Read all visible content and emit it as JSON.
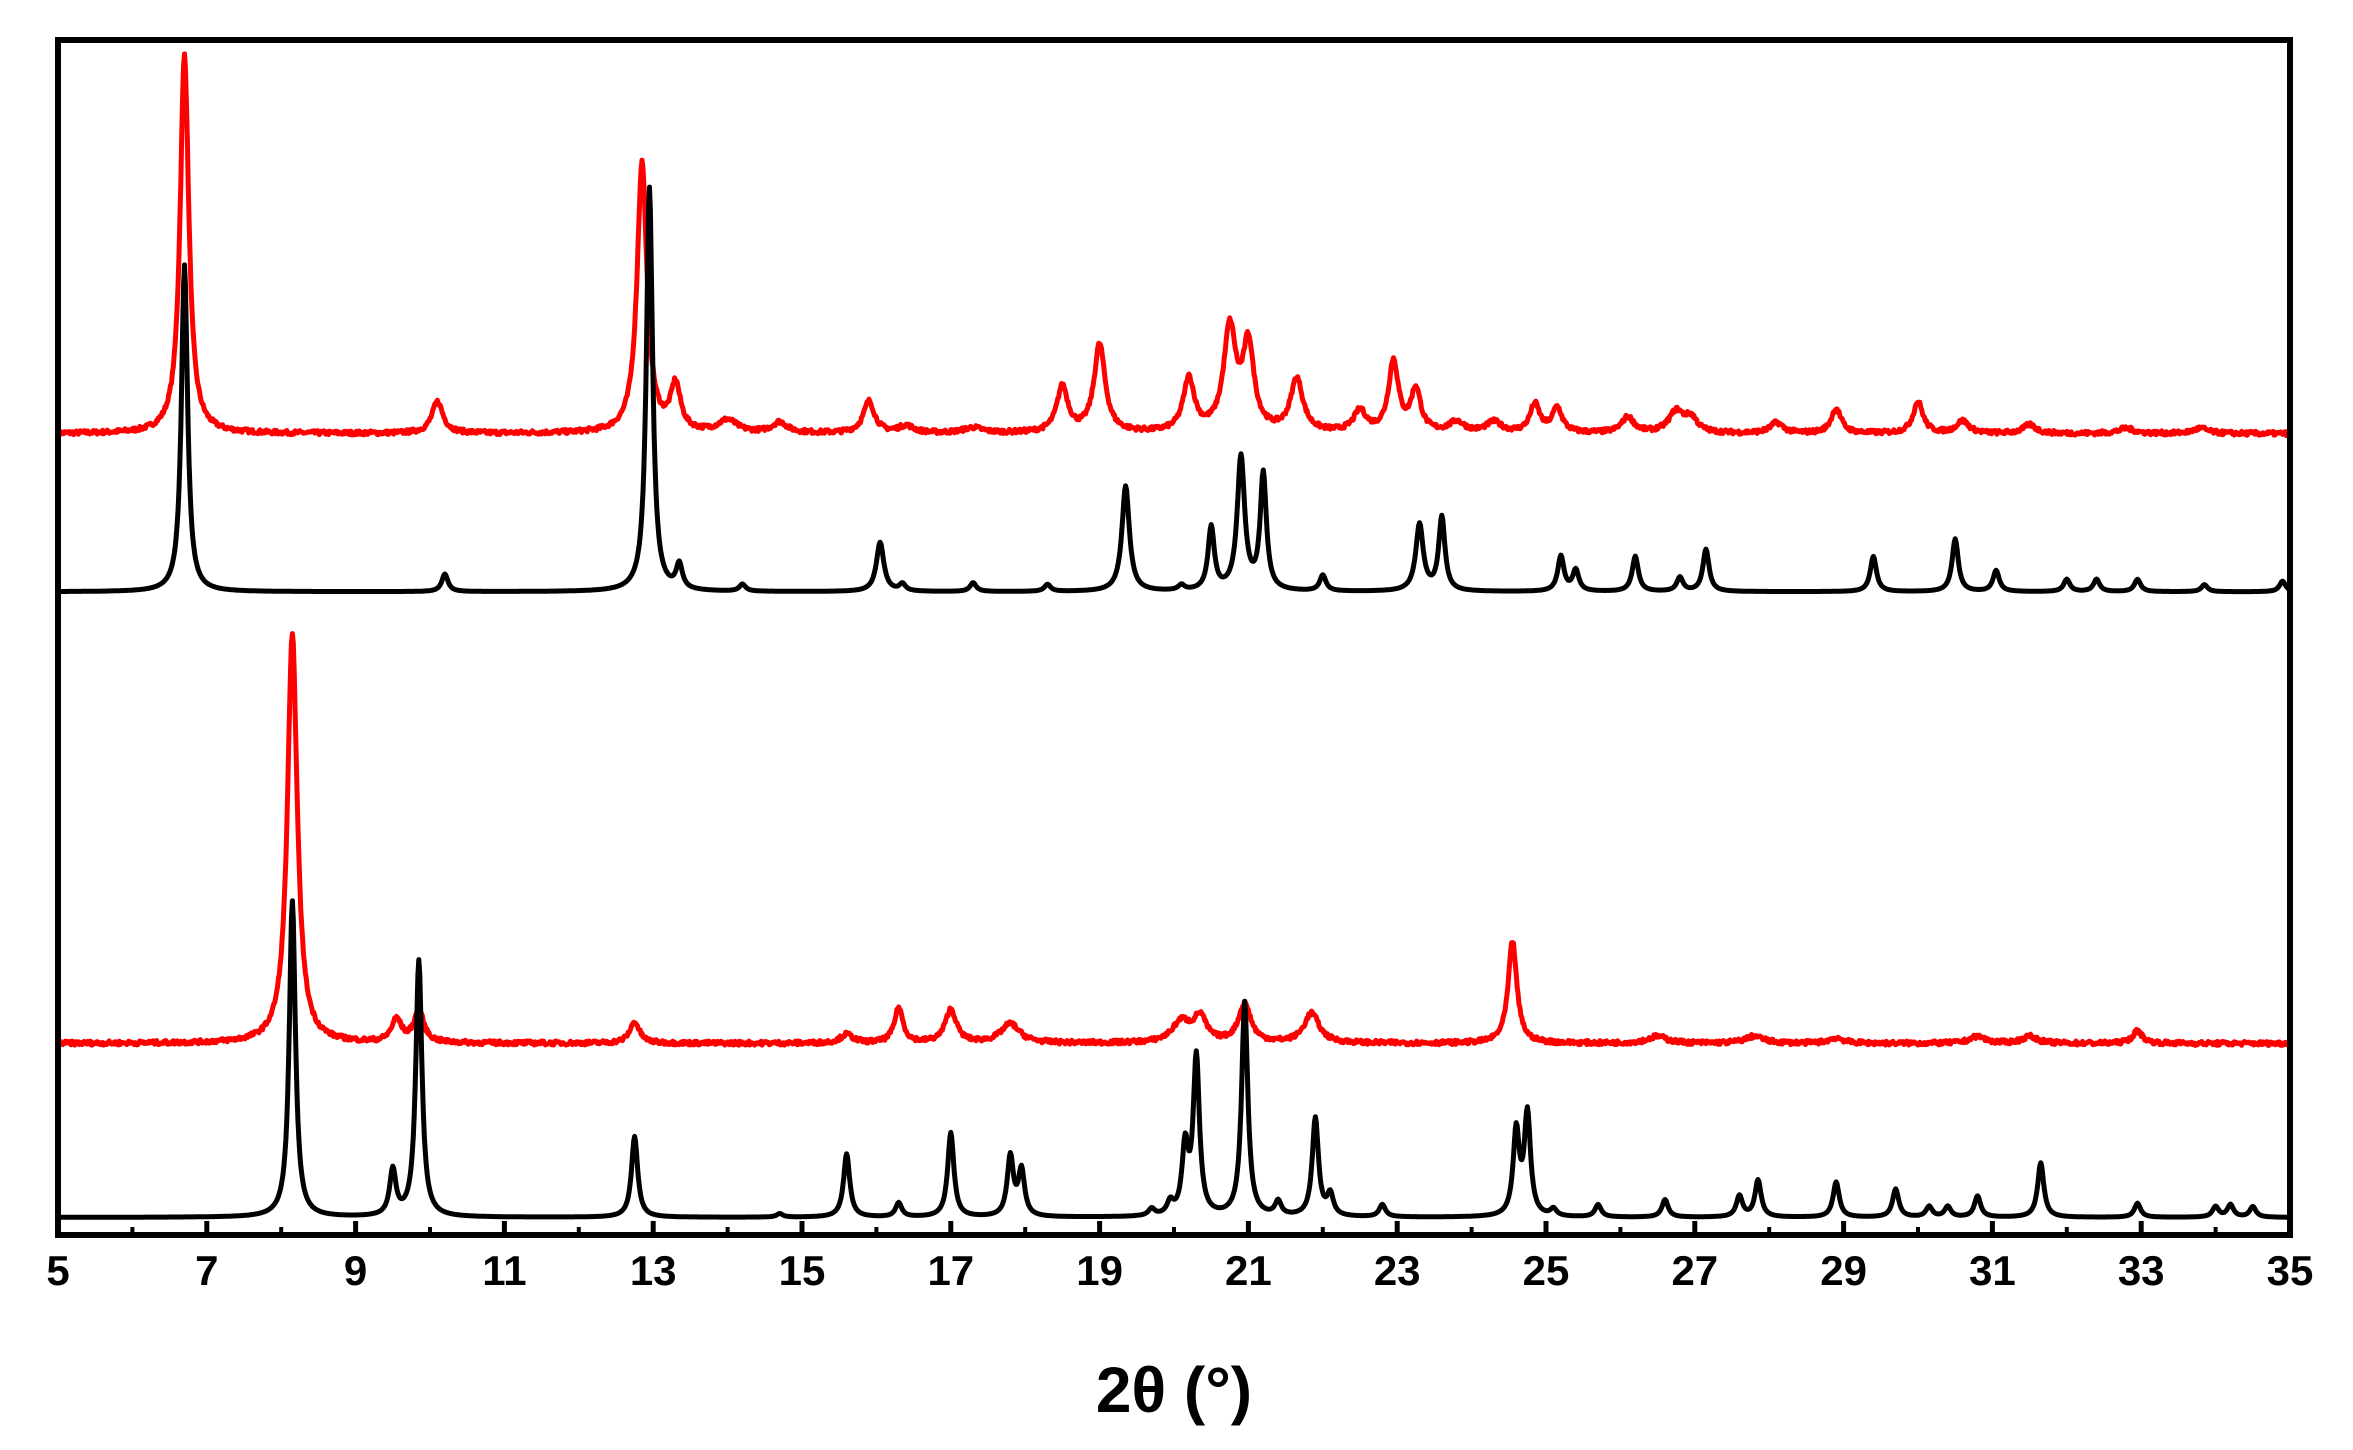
{
  "chart_data": {
    "type": "line",
    "title": "",
    "xlabel": "2θ (°)",
    "ylabel": "",
    "xlim": [
      5,
      35
    ],
    "y_ticks_shown": false,
    "grid": false,
    "legend": "none",
    "x_ticks": [
      "5",
      "7",
      "9",
      "11",
      "13",
      "15",
      "17",
      "19",
      "21",
      "23",
      "25",
      "27",
      "29",
      "31",
      "33",
      "35"
    ],
    "series": [
      {
        "color": "#ff0000",
        "baseline": 0.8,
        "noise": 0.006,
        "peaks": [
          [
            6.7,
            10.8,
            0.07
          ],
          [
            10.1,
            0.9,
            0.09
          ],
          [
            12.85,
            7.7,
            0.08
          ],
          [
            13.3,
            1.3,
            0.08
          ],
          [
            14.0,
            0.35,
            0.15
          ],
          [
            14.7,
            0.3,
            0.12
          ],
          [
            15.9,
            0.9,
            0.09
          ],
          [
            16.4,
            0.2,
            0.12
          ],
          [
            17.3,
            0.15,
            0.15
          ],
          [
            18.5,
            1.3,
            0.09
          ],
          [
            19.0,
            2.5,
            0.09
          ],
          [
            20.2,
            1.5,
            0.09
          ],
          [
            20.75,
            2.9,
            0.1
          ],
          [
            21.0,
            2.4,
            0.09
          ],
          [
            21.65,
            1.5,
            0.1
          ],
          [
            22.5,
            0.6,
            0.1
          ],
          [
            22.95,
            2.0,
            0.08
          ],
          [
            23.25,
            1.2,
            0.08
          ],
          [
            23.8,
            0.3,
            0.12
          ],
          [
            24.3,
            0.3,
            0.12
          ],
          [
            24.85,
            0.8,
            0.08
          ],
          [
            25.15,
            0.7,
            0.08
          ],
          [
            26.1,
            0.45,
            0.1
          ],
          [
            26.75,
            0.6,
            0.12
          ],
          [
            26.95,
            0.4,
            0.1
          ],
          [
            28.1,
            0.3,
            0.1
          ],
          [
            28.9,
            0.7,
            0.08
          ],
          [
            30.0,
            0.9,
            0.08
          ],
          [
            30.6,
            0.35,
            0.1
          ],
          [
            31.5,
            0.25,
            0.1
          ],
          [
            32.8,
            0.15,
            0.12
          ],
          [
            33.8,
            0.15,
            0.12
          ]
        ]
      },
      {
        "color": "#000000",
        "baseline": -3.7,
        "noise": 0.0,
        "peaks": [
          [
            6.7,
            9.3,
            0.05
          ],
          [
            10.2,
            0.5,
            0.05
          ],
          [
            12.95,
            11.5,
            0.05
          ],
          [
            13.35,
            0.7,
            0.05
          ],
          [
            14.2,
            0.2,
            0.05
          ],
          [
            16.05,
            1.4,
            0.06
          ],
          [
            16.35,
            0.2,
            0.05
          ],
          [
            17.3,
            0.25,
            0.05
          ],
          [
            18.3,
            0.2,
            0.05
          ],
          [
            19.35,
            3.0,
            0.06
          ],
          [
            20.1,
            0.15,
            0.05
          ],
          [
            20.5,
            1.8,
            0.05
          ],
          [
            20.9,
            3.8,
            0.06
          ],
          [
            21.2,
            3.3,
            0.05
          ],
          [
            22.0,
            0.45,
            0.05
          ],
          [
            23.3,
            1.9,
            0.06
          ],
          [
            23.6,
            2.1,
            0.05
          ],
          [
            25.2,
            1.0,
            0.05
          ],
          [
            25.4,
            0.6,
            0.05
          ],
          [
            26.2,
            1.0,
            0.05
          ],
          [
            26.8,
            0.4,
            0.05
          ],
          [
            27.15,
            1.2,
            0.05
          ],
          [
            29.4,
            1.0,
            0.05
          ],
          [
            30.5,
            1.5,
            0.05
          ],
          [
            31.05,
            0.6,
            0.05
          ],
          [
            32.0,
            0.35,
            0.05
          ],
          [
            32.4,
            0.35,
            0.05
          ],
          [
            32.95,
            0.35,
            0.05
          ],
          [
            33.85,
            0.2,
            0.05
          ],
          [
            34.9,
            0.3,
            0.05
          ]
        ]
      },
      {
        "color": "#ff0000",
        "baseline": -16.55,
        "noise": 0.006,
        "peaks": [
          [
            8.15,
            11.6,
            0.08
          ],
          [
            9.55,
            0.65,
            0.08
          ],
          [
            9.85,
            0.9,
            0.08
          ],
          [
            12.75,
            0.6,
            0.08
          ],
          [
            15.6,
            0.25,
            0.1
          ],
          [
            16.3,
            1.0,
            0.07
          ],
          [
            17.0,
            0.95,
            0.09
          ],
          [
            17.8,
            0.55,
            0.15
          ],
          [
            20.1,
            0.6,
            0.15
          ],
          [
            20.35,
            0.7,
            0.1
          ],
          [
            20.95,
            1.1,
            0.1
          ],
          [
            21.85,
            0.85,
            0.12
          ],
          [
            24.55,
            2.9,
            0.07
          ],
          [
            26.5,
            0.2,
            0.15
          ],
          [
            27.8,
            0.2,
            0.15
          ],
          [
            28.9,
            0.15,
            0.12
          ],
          [
            30.8,
            0.2,
            0.12
          ],
          [
            31.5,
            0.2,
            0.12
          ],
          [
            32.95,
            0.35,
            0.08
          ]
        ]
      },
      {
        "color": "#000000",
        "baseline": -21.5,
        "noise": 0.0,
        "peaks": [
          [
            8.15,
            9.0,
            0.05
          ],
          [
            9.5,
            1.3,
            0.05
          ],
          [
            9.85,
            7.3,
            0.05
          ],
          [
            12.75,
            2.3,
            0.05
          ],
          [
            14.7,
            0.1,
            0.05
          ],
          [
            15.6,
            1.8,
            0.05
          ],
          [
            16.3,
            0.4,
            0.05
          ],
          [
            17.0,
            2.4,
            0.05
          ],
          [
            17.8,
            1.7,
            0.05
          ],
          [
            17.95,
            1.3,
            0.05
          ],
          [
            19.7,
            0.2,
            0.05
          ],
          [
            19.95,
            0.35,
            0.05
          ],
          [
            20.15,
            1.9,
            0.05
          ],
          [
            20.3,
            4.5,
            0.05
          ],
          [
            20.95,
            6.1,
            0.05
          ],
          [
            21.4,
            0.4,
            0.05
          ],
          [
            21.9,
            2.8,
            0.05
          ],
          [
            22.1,
            0.6,
            0.05
          ],
          [
            22.8,
            0.35,
            0.05
          ],
          [
            24.6,
            2.4,
            0.05
          ],
          [
            24.75,
            2.9,
            0.05
          ],
          [
            25.1,
            0.2,
            0.05
          ],
          [
            25.7,
            0.35,
            0.05
          ],
          [
            26.6,
            0.5,
            0.05
          ],
          [
            27.6,
            0.6,
            0.05
          ],
          [
            27.85,
            1.05,
            0.05
          ],
          [
            28.9,
            1.0,
            0.05
          ],
          [
            29.7,
            0.8,
            0.05
          ],
          [
            30.15,
            0.3,
            0.05
          ],
          [
            30.4,
            0.3,
            0.05
          ],
          [
            30.8,
            0.6,
            0.05
          ],
          [
            31.65,
            1.55,
            0.05
          ],
          [
            32.95,
            0.4,
            0.05
          ],
          [
            34.0,
            0.3,
            0.05
          ],
          [
            34.2,
            0.35,
            0.05
          ],
          [
            34.5,
            0.3,
            0.05
          ]
        ]
      }
    ]
  }
}
